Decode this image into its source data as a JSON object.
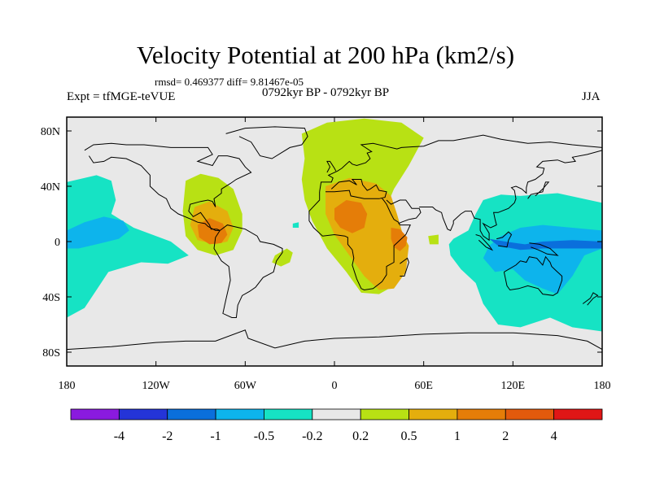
{
  "header": {
    "title": "Velocity Potential at 200 hPa (km2/s)",
    "stats": "rmsd= 0.469377 diff= 9.81467e-05",
    "experiment": "Expt = tfMGE-teVUE",
    "period": "0792kyr BP - 0792kyr BP",
    "season": "JJA"
  },
  "chart_data": {
    "type": "heatmap",
    "title": "Velocity Potential at 200 hPa (km2/s)",
    "projection": "cylindrical equidistant",
    "xlim": [
      -180,
      180
    ],
    "ylim": [
      -90,
      90
    ],
    "x_ticks": [
      {
        "value": -180,
        "label": "180"
      },
      {
        "value": -120,
        "label": "120W"
      },
      {
        "value": -60,
        "label": "60W"
      },
      {
        "value": 0,
        "label": "0"
      },
      {
        "value": 60,
        "label": "60E"
      },
      {
        "value": 120,
        "label": "120E"
      },
      {
        "value": 180,
        "label": "180"
      }
    ],
    "y_ticks": [
      {
        "value": 80,
        "label": "80N"
      },
      {
        "value": 40,
        "label": "40N"
      },
      {
        "value": 0,
        "label": "0"
      },
      {
        "value": -40,
        "label": "40S"
      },
      {
        "value": -80,
        "label": "80S"
      }
    ],
    "colorbar": {
      "colors": [
        "#8a1adf",
        "#2434d8",
        "#0a6fdc",
        "#0db4ec",
        "#16e3c4",
        "#e8e8e8",
        "#b8e114",
        "#e4ae0d",
        "#e57d08",
        "#e35a0c",
        "#e01616"
      ],
      "boundaries": [
        -4,
        -2,
        -1,
        -0.5,
        -0.2,
        0.2,
        0.5,
        1,
        2,
        4
      ],
      "labels": [
        "-4",
        "-2",
        "-1",
        "-0.5",
        "-0.2",
        "0.2",
        "0.5",
        "1",
        "2",
        "4"
      ]
    },
    "regions": [
      {
        "name": "Central America / Caribbean positive",
        "level": 0.2
      },
      {
        "name": "Central America / Caribbean core",
        "level": 0.5
      },
      {
        "name": "Central America / Caribbean peak",
        "level": 1
      },
      {
        "name": "Africa / Europe / Arctic positive",
        "level": 0.2
      },
      {
        "name": "North Africa / Middle East",
        "level": 0.5
      },
      {
        "name": "Sahara core",
        "level": 1
      },
      {
        "name": "East Africa core",
        "level": 1
      },
      {
        "name": "South Atlantic positive",
        "level": 0.2
      },
      {
        "name": "Arabian Sea small positive",
        "level": 0.2
      },
      {
        "name": "North Pacific negative",
        "level": -0.2
      },
      {
        "name": "Central Pacific negative",
        "level": -0.5
      },
      {
        "name": "Western Pacific / Indian Ocean negative",
        "level": -0.2
      },
      {
        "name": "Maritime Continent negative",
        "level": -0.5
      },
      {
        "name": "Equatorial Western Pacific",
        "level": -1
      },
      {
        "name": "Tropical Atlantic small negative",
        "level": -0.2
      }
    ]
  }
}
